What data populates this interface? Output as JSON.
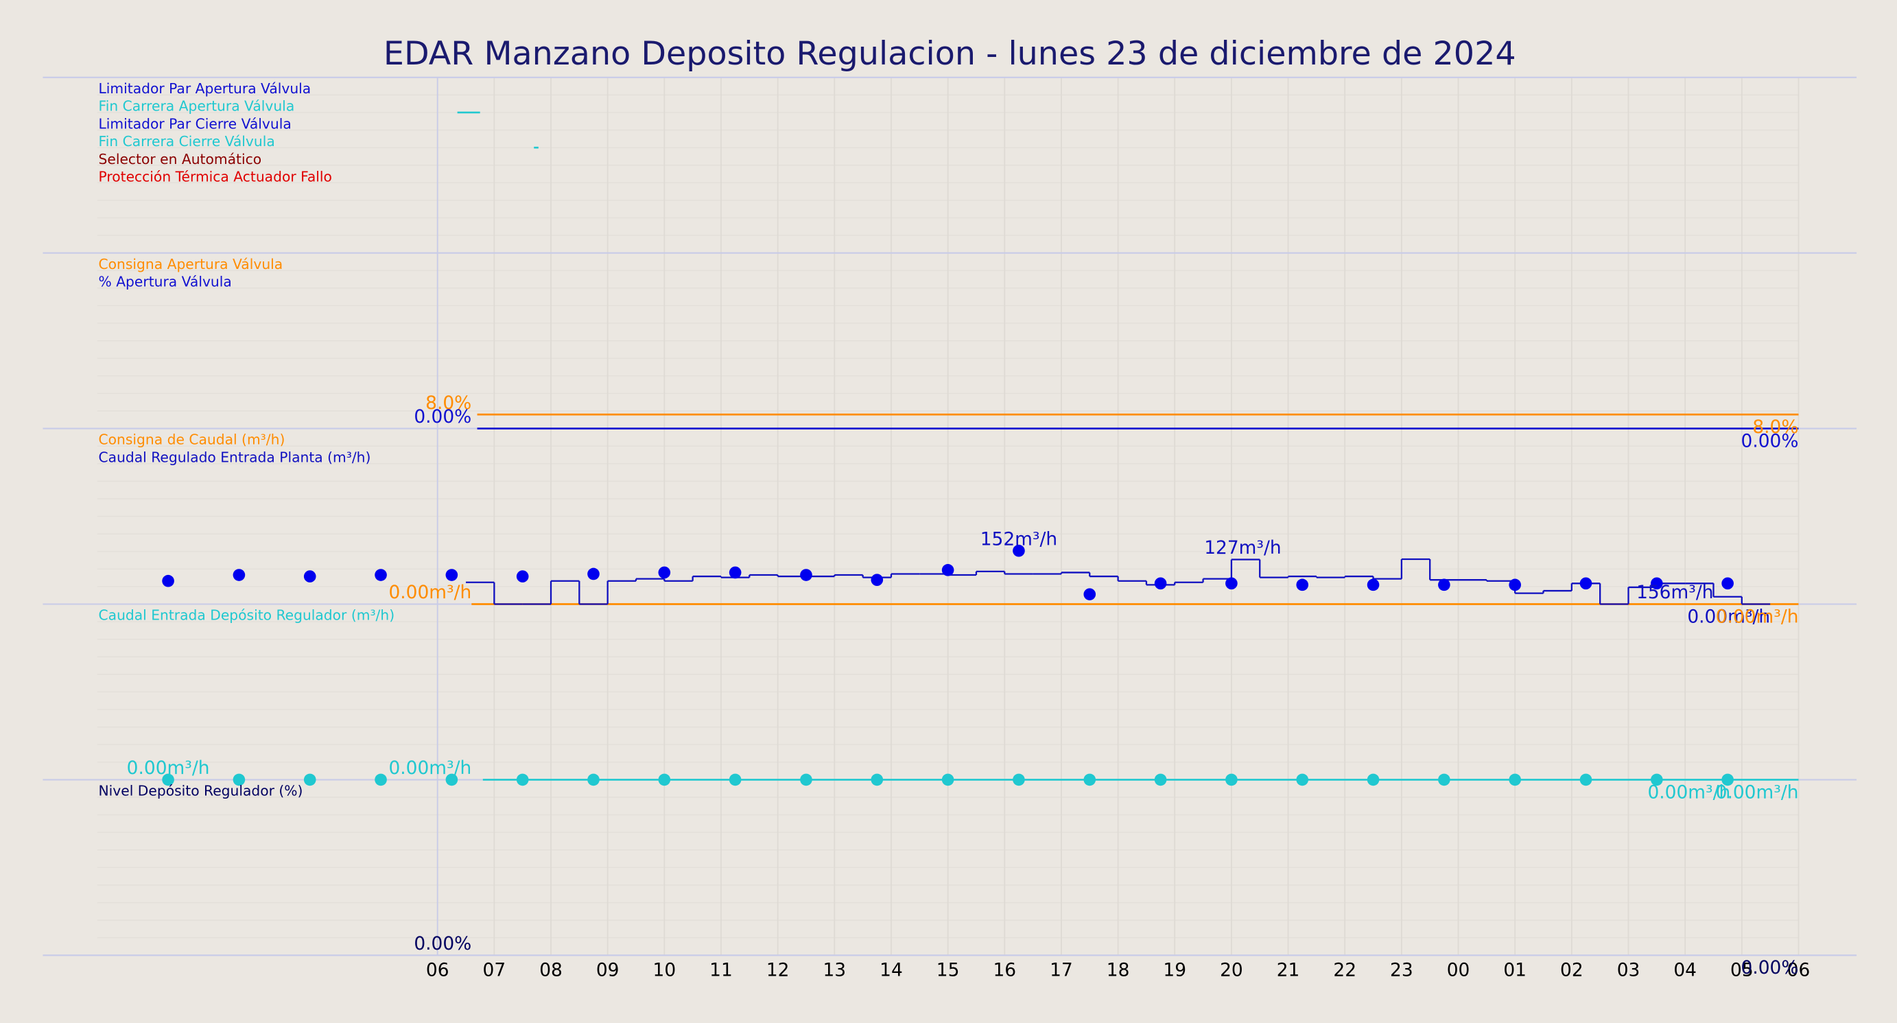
{
  "title": "EDAR Manzano Deposito Regulacion   -   lunes 23 de diciembre de 2024",
  "xaxis": {
    "xlim": [
      0,
      30
    ],
    "xticks": [
      {
        "value": 6,
        "label": "06"
      },
      {
        "value": 7,
        "label": "07"
      },
      {
        "value": 8,
        "label": "08"
      },
      {
        "value": 9,
        "label": "09"
      },
      10,
      11,
      12,
      13,
      14,
      15,
      16,
      17,
      18,
      19,
      20,
      21,
      22,
      23,
      {
        "value": 24,
        "label": "00"
      },
      {
        "value": 25,
        "label": "01"
      },
      {
        "value": 26,
        "label": "02"
      },
      {
        "value": 27,
        "label": "03"
      },
      {
        "value": 28,
        "label": "04"
      },
      {
        "value": 29,
        "label": "05"
      },
      {
        "value": 30,
        "label": "06"
      }
    ]
  },
  "chart_data": [
    {
      "type": "line",
      "ylim": [
        0,
        10
      ],
      "series": [
        {
          "name": "Limitador Par Apertura Válvula",
          "color": "#1010d0"
        },
        {
          "name": "Fin Carrera Apertura Válvula",
          "color": "#20c8d0",
          "marker": "line",
          "x": [
            6.35,
            6.75
          ],
          "values": [
            8,
            8
          ]
        },
        {
          "name": "Limitador Par Cierre Válvula",
          "color": "#1010d0"
        },
        {
          "name": "Fin Carrera Cierre Válvula",
          "color": "#20c8d0",
          "marker": "line",
          "x": [
            7.7,
            7.78
          ],
          "values": [
            6,
            6
          ]
        },
        {
          "name": "Selector en Automático",
          "color": "#8b0000"
        },
        {
          "name": "Protección Térmica Actuador Fallo",
          "color": "#e00000"
        }
      ],
      "annotations": []
    },
    {
      "type": "line",
      "ylim": [
        0,
        100
      ],
      "series": [
        {
          "name": "Consigna Apertura Válvula",
          "color": "#ff8c00",
          "marker": "line",
          "x": [
            6.7,
            30
          ],
          "values": [
            8,
            8
          ]
        },
        {
          "name": "% Apertura Válvula",
          "color": "#1010d0",
          "marker": "line",
          "x": [
            6.7,
            30
          ],
          "values": [
            0,
            0
          ]
        }
      ],
      "annotations": [
        {
          "text": "8.0%",
          "x": 6.6,
          "y": 8,
          "color": "#ff8c00",
          "anchor": "end",
          "place": "above"
        },
        {
          "text": "0.00%",
          "x": 6.6,
          "y": 0,
          "color": "#1010d0",
          "anchor": "end",
          "place": "above"
        },
        {
          "text": "8.0%",
          "x": 30,
          "y": 8,
          "color": "#ff8c00",
          "anchor": "end",
          "place": "below"
        },
        {
          "text": "0.00%",
          "x": 30,
          "y": 0,
          "color": "#1010d0",
          "anchor": "end",
          "place": "below"
        }
      ]
    },
    {
      "type": "line",
      "ylim": [
        0,
        500
      ],
      "series": [
        {
          "name": "Consigna de Caudal (m³/h)",
          "color": "#ff8c00",
          "marker": "line",
          "x": [
            6.6,
            30
          ],
          "values": [
            0,
            0
          ]
        },
        {
          "name": "Caudal Regulado Entrada Planta (m³/h)",
          "color": "#1010c0",
          "marker": "step",
          "x": [
            6.5,
            7,
            7.5,
            8,
            8.5,
            9,
            9.5,
            10,
            10.5,
            11,
            11.5,
            12,
            12.5,
            13,
            13.5,
            14,
            14.5,
            15,
            15.5,
            16,
            16.5,
            17,
            17.5,
            18,
            18.5,
            19,
            19.5,
            20,
            20.5,
            21,
            21.5,
            22,
            22.5,
            23,
            23.5,
            24,
            24.5,
            25,
            25.5,
            26,
            26.5,
            27,
            27.5,
            28,
            28.5,
            29,
            29.5
          ],
          "values": [
            62,
            0,
            0,
            66,
            0,
            66,
            72,
            66,
            79,
            76,
            83,
            79,
            79,
            83,
            76,
            86,
            86,
            83,
            93,
            86,
            86,
            90,
            79,
            66,
            55,
            62,
            72,
            127,
            76,
            79,
            76,
            79,
            72,
            128,
            69,
            69,
            66,
            31,
            38,
            59,
            0,
            48,
            59,
            59,
            21,
            0,
            0
          ]
        },
        {
          "name": null,
          "color": "#0000ee",
          "marker": "dot",
          "x": [
            1.25,
            2.5,
            3.75,
            5,
            6.25,
            7.5,
            8.75,
            10,
            11.25,
            12.5,
            13.75,
            15,
            16.25,
            17.5,
            18.75,
            20,
            21.25,
            22.5,
            23.75,
            25,
            26.25,
            27.5,
            28.75
          ],
          "values": [
            66,
            83,
            79,
            83,
            83,
            79,
            86,
            90,
            90,
            83,
            69,
            97,
            152,
            28,
            59,
            59,
            55,
            55,
            55,
            55,
            59,
            59,
            59
          ]
        }
      ],
      "annotations": [
        {
          "text": "0.00m³/h",
          "x": 6.6,
          "y": 0,
          "color": "#ff8c00",
          "anchor": "end",
          "place": "above"
        },
        {
          "text": "152m³/h",
          "x": 16.25,
          "y": 152,
          "color": "#1010c0",
          "anchor": "middle",
          "place": "above"
        },
        {
          "text": "127m³/h",
          "x": 20.2,
          "y": 127,
          "color": "#1010c0",
          "anchor": "middle",
          "place": "above"
        },
        {
          "text": "156m³/h",
          "x": 28.5,
          "y": 0,
          "color": "#1010c0",
          "anchor": "end",
          "place": "above"
        },
        {
          "text": "0.00m³/h",
          "x": 29.5,
          "y": 0,
          "color": "#1010c0",
          "anchor": "end",
          "place": "below"
        },
        {
          "text": "0.00m³/h",
          "x": 30,
          "y": 0,
          "color": "#ff8c00",
          "anchor": "end",
          "place": "below"
        }
      ]
    },
    {
      "type": "line",
      "ylim": [
        0,
        100
      ],
      "series": [
        {
          "name": "Caudal Entrada Depósito Regulador (m³/h)",
          "color": "#20c8d0",
          "marker": "line",
          "x": [
            6.8,
            30
          ],
          "values": [
            0,
            0
          ]
        },
        {
          "name": null,
          "color": "#20c8d0",
          "marker": "dot",
          "x": [
            1.25,
            2.5,
            3.75,
            5,
            6.25,
            7.5,
            8.75,
            10,
            11.25,
            12.5,
            13.75,
            15,
            16.25,
            17.5,
            18.75,
            20,
            21.25,
            22.5,
            23.75,
            25,
            26.25,
            27.5,
            28.75
          ],
          "values": [
            0,
            0,
            0,
            0,
            0,
            0,
            0,
            0,
            0,
            0,
            0,
            0,
            0,
            0,
            0,
            0,
            0,
            0,
            0,
            0,
            0,
            0,
            0
          ]
        }
      ],
      "annotations": [
        {
          "text": "0.00m³/h",
          "x": 1.25,
          "y": 0,
          "color": "#20c8d0",
          "anchor": "middle",
          "place": "above"
        },
        {
          "text": "0.00m³/h",
          "x": 6.6,
          "y": 0,
          "color": "#20c8d0",
          "anchor": "end",
          "place": "above"
        },
        {
          "text": "0.00m³/h",
          "x": 28.8,
          "y": 0,
          "color": "#20c8d0",
          "anchor": "end",
          "place": "below"
        },
        {
          "text": "0.00m³/h",
          "x": 30,
          "y": 0,
          "color": "#20c8d0",
          "anchor": "end",
          "place": "below"
        }
      ]
    },
    {
      "type": "line",
      "ylim": [
        0,
        100
      ],
      "series": [
        {
          "name": "Nivel Depósito Regulador (%)",
          "color": "#000060"
        }
      ],
      "annotations": [
        {
          "text": "0.00%",
          "x": 6.6,
          "y": 0,
          "color": "#000060",
          "anchor": "end",
          "place": "above"
        },
        {
          "text": "0.00%",
          "x": 30,
          "y": 0,
          "color": "#000060",
          "anchor": "end",
          "place": "below"
        }
      ]
    }
  ]
}
